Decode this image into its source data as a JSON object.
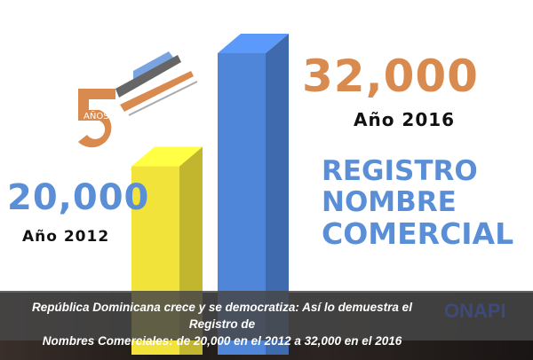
{
  "chart_data": {
    "type": "bar",
    "categories": [
      "Año 2012",
      "Año 2016"
    ],
    "values": [
      20000,
      32000
    ],
    "value_labels": [
      "20,000",
      "32,000"
    ],
    "colors": [
      "#f2e33a",
      "#4f86d9"
    ],
    "title": "REGISTRO NOMBRE COMERCIAL",
    "title_lines": [
      "REGISTRO",
      "NOMBRE",
      "COMERCIAL"
    ],
    "style": "3d"
  },
  "logo": {
    "text": "AÑOS",
    "number": "5",
    "colors": [
      "#d98a4e",
      "#7aa4e0",
      "#666666"
    ]
  },
  "caption": {
    "line1": "República Dominicana crece y se democratiza: Así lo demuestra el Registro de",
    "line2": "Nombres Comerciales: de 20,000 en el 2012 a 32,000 en el 2016"
  },
  "brand": {
    "name": "ONAPI"
  }
}
